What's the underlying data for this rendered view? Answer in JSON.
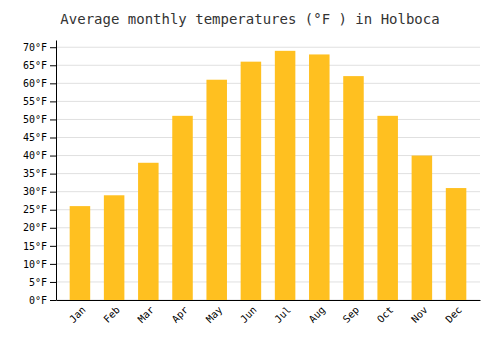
{
  "chart_data": {
    "type": "bar",
    "title": "Average monthly temperatures (°F ) in Holboca",
    "categories": [
      "Jan",
      "Feb",
      "Mar",
      "Apr",
      "May",
      "Jun",
      "Jul",
      "Aug",
      "Sep",
      "Oct",
      "Nov",
      "Dec"
    ],
    "values": [
      26,
      29,
      38,
      51,
      61,
      66,
      69,
      68,
      62,
      51,
      40,
      31
    ],
    "color": "#FFC020",
    "ylim": [
      0,
      72
    ],
    "yticks": [
      {
        "value": 0,
        "label": "0°F"
      },
      {
        "value": 5,
        "label": "5°F"
      },
      {
        "value": 10,
        "label": "10°F"
      },
      {
        "value": 15,
        "label": "15°F"
      },
      {
        "value": 20,
        "label": "20°F"
      },
      {
        "value": 25,
        "label": "25°F"
      },
      {
        "value": 30,
        "label": "30°F"
      },
      {
        "value": 35,
        "label": "35°F"
      },
      {
        "value": 40,
        "label": "40°F"
      },
      {
        "value": 45,
        "label": "45°F"
      },
      {
        "value": 50,
        "label": "50°F"
      },
      {
        "value": 55,
        "label": "55°F"
      },
      {
        "value": 60,
        "label": "60°F"
      },
      {
        "value": 65,
        "label": "65°F"
      },
      {
        "value": 70,
        "label": "70°F"
      }
    ],
    "grid": true
  }
}
